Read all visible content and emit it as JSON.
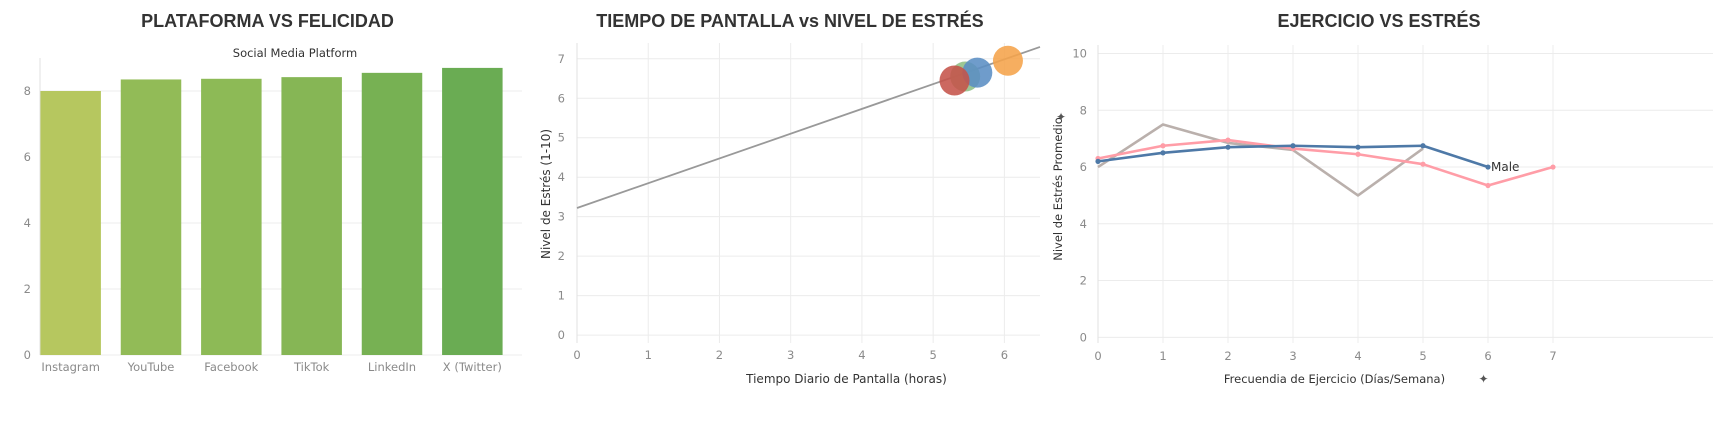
{
  "panels": [
    {
      "title": "PLATAFORMA VS FELICIDAD"
    },
    {
      "title": "TIEMPO DE PANTALLA vs NIVEL DE ESTRÉS"
    },
    {
      "title": "EJERCICIO VS ESTRÉS"
    }
  ],
  "chart_data": [
    {
      "type": "bar",
      "title": "PLATAFORMA VS FELICIDAD",
      "subtitle": "Social Media Platform",
      "categories": [
        "Instagram",
        "YouTube",
        "Facebook",
        "TikTok",
        "LinkedIn",
        "X (Twitter)"
      ],
      "values": [
        8.0,
        8.35,
        8.37,
        8.42,
        8.55,
        8.7
      ],
      "colors": [
        "#b6c75f",
        "#92bb57",
        "#8dba56",
        "#86b655",
        "#77b153",
        "#6aac53"
      ],
      "yticks": [
        "0",
        "2",
        "4",
        "6",
        "8"
      ],
      "ylim": [
        0,
        9
      ],
      "grid": true
    },
    {
      "type": "scatter",
      "title": "TIEMPO DE PANTALLA vs NIVEL DE ESTRÉS",
      "xlabel": "Tiempo Diario de Pantalla (horas)",
      "ylabel": "Nivel de Estrés (1-10)",
      "xticks": [
        "0",
        "1",
        "2",
        "3",
        "4",
        "5",
        "6"
      ],
      "yticks": [
        "0",
        "1",
        "2",
        "3",
        "4",
        "5",
        "6",
        "7"
      ],
      "xlim": [
        0,
        6.5
      ],
      "ylim": [
        -0.2,
        7.4
      ],
      "points": [
        {
          "x": 5.45,
          "y": 6.55,
          "color": "#8fbf85"
        },
        {
          "x": 5.62,
          "y": 6.65,
          "color": "#5b8ec4"
        },
        {
          "x": 6.05,
          "y": 6.95,
          "color": "#f5a34a"
        },
        {
          "x": 5.3,
          "y": 6.45,
          "color": "#c5534a"
        }
      ],
      "trendline": {
        "x": [
          0,
          6.5
        ],
        "y": [
          3.22,
          7.3
        ],
        "color": "#999999"
      },
      "grid": true
    },
    {
      "type": "line",
      "title": "EJERCICIO VS ESTRÉS",
      "xlabel": "Frecuendia de Ejercicio (Días/Semana)",
      "ylabel": "Nivel de Estrés Promedio",
      "xticks": [
        "0",
        "1",
        "2",
        "3",
        "4",
        "5",
        "6",
        "7"
      ],
      "yticks": [
        "0",
        "2",
        "4",
        "6",
        "8",
        "10"
      ],
      "xlim": [
        0,
        7
      ],
      "ylim": [
        -0.2,
        10.3
      ],
      "series": [
        {
          "name": "Male",
          "color": "#4e79a7",
          "markers": true,
          "x": [
            0,
            1,
            2,
            3,
            4,
            5,
            6
          ],
          "y": [
            6.2,
            6.5,
            6.7,
            6.75,
            6.7,
            6.75,
            6.0
          ]
        },
        {
          "color": "#ff9da7",
          "markers": true,
          "x": [
            0,
            1,
            2,
            3,
            4,
            5,
            6,
            7
          ],
          "y": [
            6.3,
            6.75,
            6.95,
            6.65,
            6.45,
            6.1,
            5.35,
            6.0
          ]
        },
        {
          "color": "#bab0ac",
          "markers": false,
          "x": [
            0,
            1,
            2,
            3,
            4,
            5
          ],
          "y": [
            6.0,
            7.5,
            6.85,
            6.6,
            5.0,
            6.65
          ]
        }
      ],
      "grid": true
    }
  ]
}
